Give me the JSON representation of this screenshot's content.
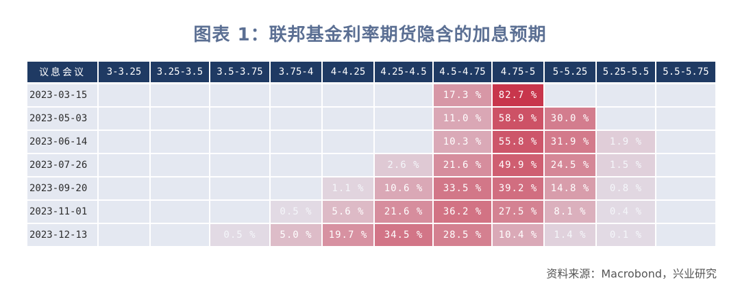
{
  "title": "图表 1：联邦基金利率期货隐含的加息预期",
  "source": "资料来源：Macrobond，兴业研究",
  "colors": {
    "header_bg": "#1f3a63",
    "empty_cell": "#e4e8f1",
    "high": "#c8344a"
  },
  "chart_data": {
    "type": "table",
    "corner_label": "议息会议",
    "columns": [
      "3-3.25",
      "3.25-3.5",
      "3.5-3.75",
      "3.75-4",
      "4-4.25",
      "4.25-4.5",
      "4.5-4.75",
      "4.75-5",
      "5-5.25",
      "5.25-5.5",
      "5.5-5.75"
    ],
    "rows": [
      {
        "meeting": "2023-03-15",
        "values": [
          null,
          null,
          null,
          null,
          null,
          null,
          17.3,
          82.7,
          null,
          null,
          null
        ]
      },
      {
        "meeting": "2023-05-03",
        "values": [
          null,
          null,
          null,
          null,
          null,
          null,
          11.0,
          58.9,
          30.0,
          null,
          null
        ]
      },
      {
        "meeting": "2023-06-14",
        "values": [
          null,
          null,
          null,
          null,
          null,
          null,
          10.3,
          55.8,
          31.9,
          1.9,
          null
        ]
      },
      {
        "meeting": "2023-07-26",
        "values": [
          null,
          null,
          null,
          null,
          null,
          2.6,
          21.6,
          49.9,
          24.5,
          1.5,
          null
        ]
      },
      {
        "meeting": "2023-09-20",
        "values": [
          null,
          null,
          null,
          null,
          1.1,
          10.6,
          33.5,
          39.2,
          14.8,
          0.8,
          null
        ]
      },
      {
        "meeting": "2023-11-01",
        "values": [
          null,
          null,
          null,
          0.5,
          5.6,
          21.6,
          36.2,
          27.5,
          8.1,
          0.4,
          null
        ]
      },
      {
        "meeting": "2023-12-13",
        "values": [
          null,
          null,
          0.5,
          5.0,
          19.7,
          34.5,
          28.5,
          10.4,
          1.4,
          0.1,
          null
        ]
      }
    ],
    "unit": "%"
  }
}
